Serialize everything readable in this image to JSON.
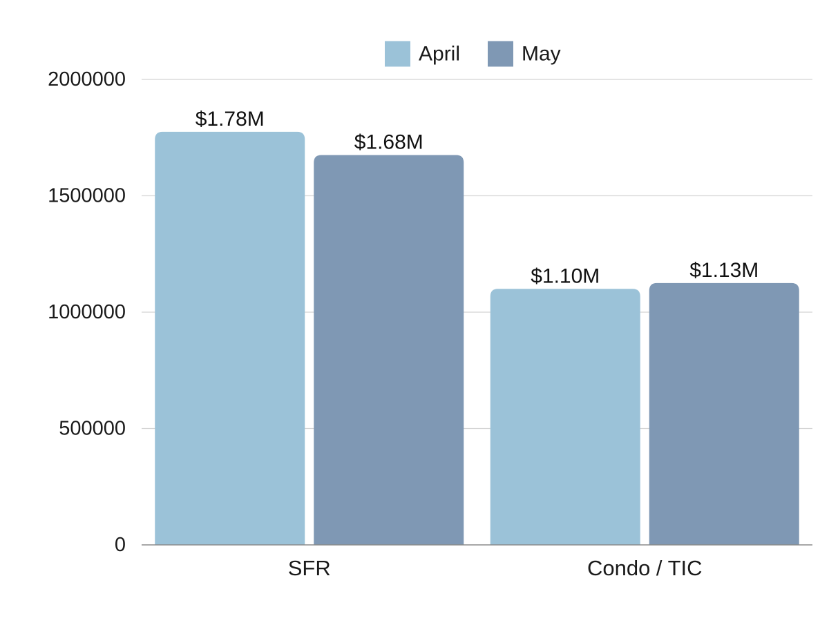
{
  "chart_data": {
    "type": "bar",
    "title": "",
    "xlabel": "",
    "ylabel": "",
    "categories": [
      "SFR",
      "Condo / TIC"
    ],
    "series": [
      {
        "name": "April",
        "color": "#9bc2d8",
        "values": [
          1775000,
          1100000
        ],
        "labels": [
          "$1.78M",
          "$1.10M"
        ]
      },
      {
        "name": "May",
        "color": "#7f98b4",
        "values": [
          1675000,
          1125000
        ],
        "labels": [
          "$1.68M",
          "$1.13M"
        ]
      }
    ],
    "ylim": [
      0,
      2000000
    ],
    "yticks": [
      "0",
      "500000",
      "1000000",
      "1500000",
      "2000000"
    ],
    "grid": true,
    "legend_position": "top-center"
  }
}
